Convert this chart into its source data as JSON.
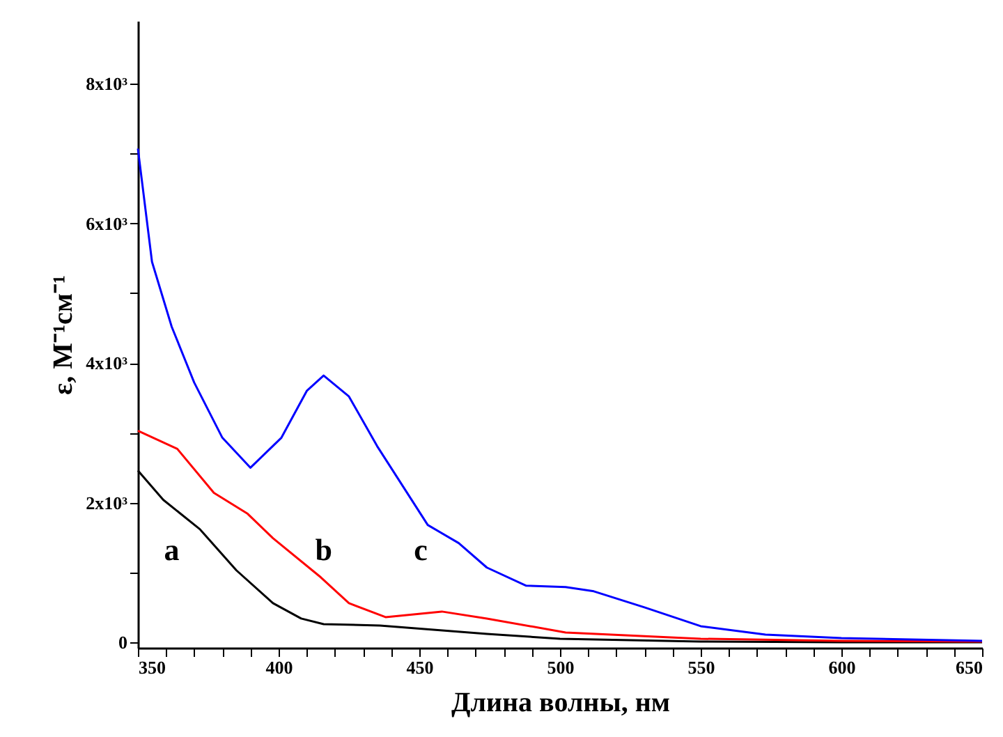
{
  "chart_data": {
    "type": "line",
    "xlabel": "Длина волны, нм",
    "ylabel": "ε, M⁻¹см⁻¹",
    "xlim": [
      350,
      650
    ],
    "ylim": [
      -80,
      8900
    ],
    "xticks": [
      350,
      {
        "value": 360,
        "label": null
      },
      {
        "value": 370,
        "label": null
      },
      {
        "value": 380,
        "label": null
      },
      {
        "value": 390,
        "label": null
      },
      400,
      {
        "value": 410,
        "label": null
      },
      {
        "value": 420,
        "label": null
      },
      {
        "value": 430,
        "label": null
      },
      {
        "value": 440,
        "label": null
      },
      450,
      {
        "value": 460,
        "label": null
      },
      {
        "value": 470,
        "label": null
      },
      {
        "value": 480,
        "label": null
      },
      {
        "value": 490,
        "label": null
      },
      500,
      {
        "value": 510,
        "label": null
      },
      {
        "value": 520,
        "label": null
      },
      {
        "value": 530,
        "label": null
      },
      {
        "value": 540,
        "label": null
      },
      550,
      {
        "value": 560,
        "label": null
      },
      {
        "value": 570,
        "label": null
      },
      {
        "value": 580,
        "label": null
      },
      {
        "value": 590,
        "label": null
      },
      600,
      {
        "value": 610,
        "label": null
      },
      {
        "value": 620,
        "label": null
      },
      {
        "value": 630,
        "label": null
      },
      {
        "value": 640,
        "label": null
      },
      650
    ],
    "yticks": [
      0,
      {
        "value": 1000,
        "label": null
      },
      {
        "value": 2000,
        "label": "2x10³"
      },
      {
        "value": 3000,
        "label": null
      },
      {
        "value": 4000,
        "label": "4x10³"
      },
      {
        "value": 5000,
        "label": null
      },
      {
        "value": 6000,
        "label": "6x10³"
      },
      {
        "value": 7000,
        "label": null
      },
      {
        "value": 8000,
        "label": "8x10³"
      }
    ],
    "grid": false,
    "marker": "none",
    "line_style": "solid",
    "series": [
      {
        "color": "#000000",
        "x": [
          350,
          359,
          372,
          385,
          398,
          408,
          416,
          436,
          474,
          500,
          550,
          600,
          650
        ],
        "values": [
          2460,
          2040,
          1620,
          1030,
          560,
          340,
          260,
          240,
          120,
          50,
          10,
          0,
          0
        ]
      },
      {
        "color": "#ff0000",
        "x": [
          350,
          364,
          377,
          389,
          398,
          415,
          425,
          438,
          458,
          474,
          502,
          550,
          600,
          650
        ],
        "values": [
          3030,
          2770,
          2140,
          1840,
          1490,
          930,
          560,
          360,
          440,
          340,
          140,
          50,
          20,
          10
        ]
      },
      {
        "color": "#0000ff",
        "x": [
          350,
          355,
          362,
          370,
          380,
          390,
          401,
          410,
          416,
          425,
          435,
          453,
          464,
          474,
          488,
          502,
          512,
          530,
          550,
          573,
          600,
          650
        ],
        "values": [
          7070,
          5450,
          4520,
          3720,
          2930,
          2500,
          2930,
          3600,
          3820,
          3520,
          2810,
          1680,
          1420,
          1070,
          810,
          790,
          730,
          500,
          230,
          110,
          60,
          20
        ]
      }
    ],
    "annotations": [
      "a",
      "b",
      "c"
    ]
  }
}
